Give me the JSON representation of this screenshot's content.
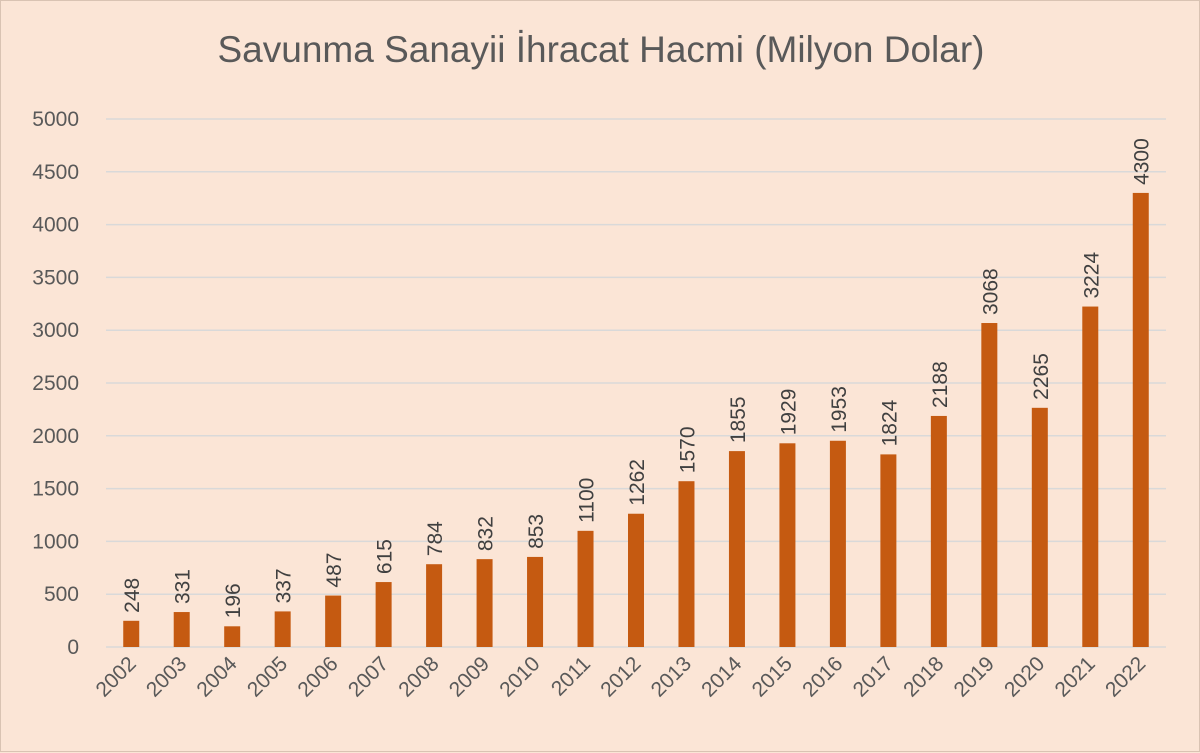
{
  "chart_data": {
    "type": "bar",
    "title": "Savunma Sanayii İhracat Hacmi (Milyon Dolar)",
    "xlabel": "",
    "ylabel": "",
    "categories": [
      "2002",
      "2003",
      "2004",
      "2005",
      "2006",
      "2007",
      "2008",
      "2009",
      "2010",
      "2011",
      "2012",
      "2013",
      "2014",
      "2015",
      "2016",
      "2017",
      "2018",
      "2019",
      "2020",
      "2021",
      "2022"
    ],
    "values": [
      248,
      331,
      196,
      337,
      487,
      615,
      784,
      832,
      853,
      1100,
      1262,
      1570,
      1855,
      1929,
      1953,
      1824,
      2188,
      3068,
      2265,
      3224,
      4300
    ],
    "data_labels": [
      "248",
      "331",
      "196",
      "337",
      "487",
      "615",
      "784",
      "832",
      "853",
      "1100",
      "1262",
      "1570",
      "1855",
      "1929",
      "1953",
      "1824",
      "2188",
      "3068",
      "2265",
      "3224",
      "4300"
    ],
    "y_ticks": [
      "0",
      "500",
      "1000",
      "1500",
      "2000",
      "2500",
      "3000",
      "3500",
      "4000",
      "4500",
      "5000"
    ],
    "ylim": [
      0,
      5000
    ],
    "grid": true,
    "legend": "none",
    "bar_color": "#c55a11",
    "background_color": "#fbe5d6"
  }
}
